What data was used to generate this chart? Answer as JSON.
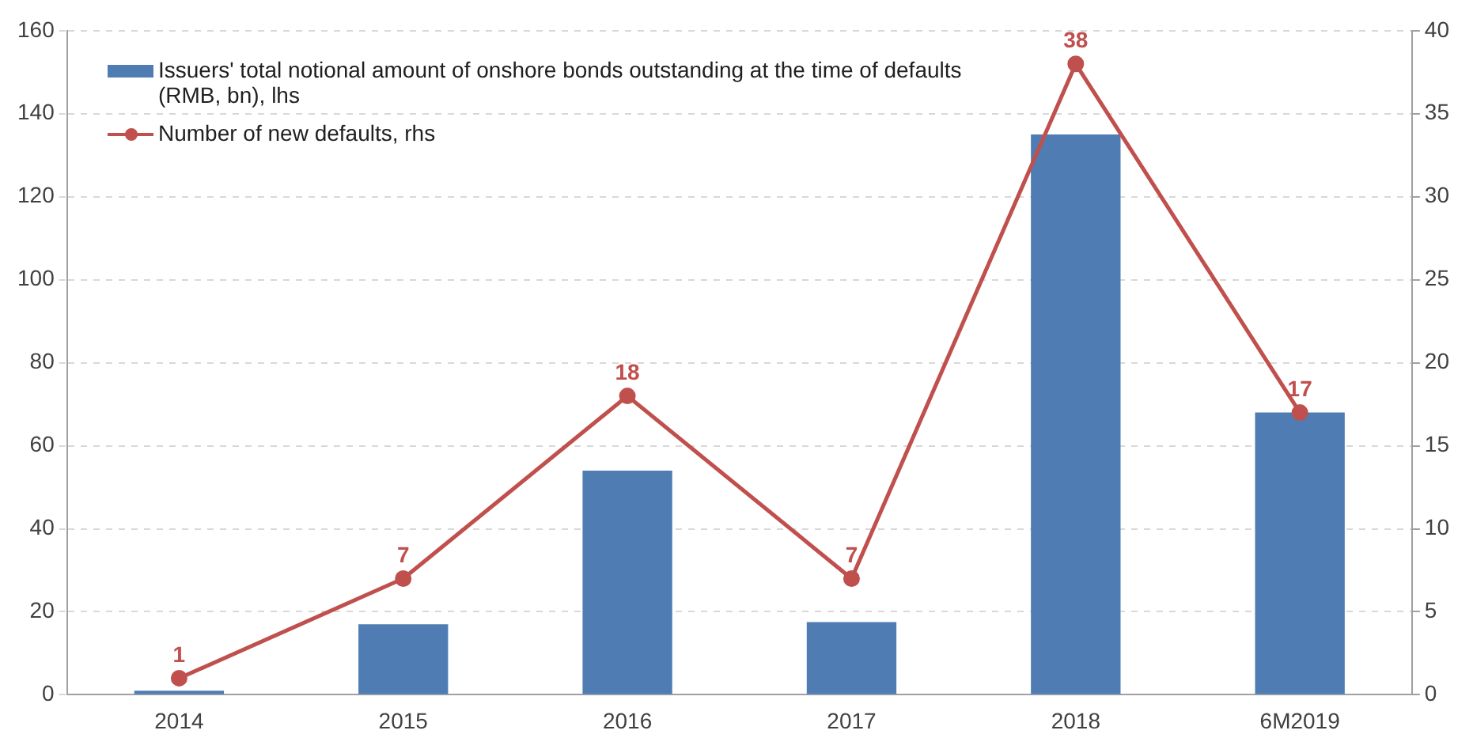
{
  "chart_data": {
    "type": "bar",
    "categories": [
      "2014",
      "2015",
      "2016",
      "2017",
      "2018",
      "6M2019"
    ],
    "series": [
      {
        "name": "Issuers' total notional amount of onshore bonds outstanding at the time of defaults (RMB, bn), lhs",
        "color": "#4f7db3",
        "values": [
          1,
          17,
          54,
          17.5,
          135,
          68
        ]
      },
      {
        "name": "Number of new defaults, rhs",
        "type": "line",
        "color": "#c0504d",
        "axis": "y2",
        "marker": "circle",
        "values": [
          1,
          7,
          18,
          7,
          38,
          17
        ],
        "value_labels": [
          "1",
          "7",
          "18",
          "7",
          "38",
          "17"
        ]
      }
    ],
    "ylim": [
      0,
      160
    ],
    "yticks": [
      0,
      20,
      40,
      60,
      80,
      100,
      120,
      140,
      160
    ],
    "y2lim": [
      0,
      40
    ],
    "y2ticks": [
      0,
      5,
      10,
      15,
      20,
      25,
      30,
      35,
      40
    ],
    "grid": "y",
    "legend": "top left"
  }
}
